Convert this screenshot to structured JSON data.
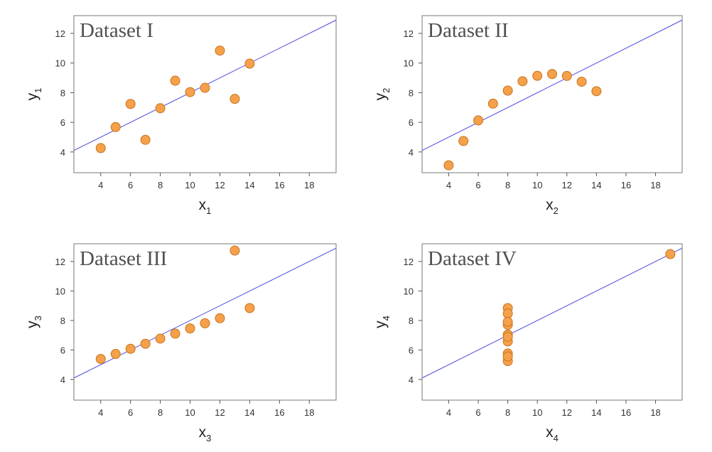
{
  "chart_data": [
    {
      "type": "scatter",
      "title": "Dataset I",
      "xlabel": "x",
      "ylabel": "y",
      "subscript": "1",
      "xlim": [
        2.2,
        19.8
      ],
      "ylim": [
        2.6,
        13.2
      ],
      "xticks": [
        4,
        6,
        8,
        10,
        12,
        14,
        16,
        18
      ],
      "yticks": [
        4,
        6,
        8,
        10,
        12
      ],
      "x": [
        4,
        5,
        6,
        7,
        8,
        9,
        10,
        11,
        12,
        13,
        14
      ],
      "y": [
        4.26,
        5.68,
        7.24,
        4.82,
        6.95,
        8.81,
        8.04,
        8.33,
        10.84,
        7.58,
        9.96
      ],
      "fit_line": {
        "intercept": 3.0,
        "slope": 0.5
      }
    },
    {
      "type": "scatter",
      "title": "Dataset II",
      "xlabel": "x",
      "ylabel": "y",
      "subscript": "2",
      "xlim": [
        2.2,
        19.8
      ],
      "ylim": [
        2.6,
        13.2
      ],
      "xticks": [
        4,
        6,
        8,
        10,
        12,
        14,
        16,
        18
      ],
      "yticks": [
        4,
        6,
        8,
        10,
        12
      ],
      "x": [
        4,
        5,
        6,
        7,
        8,
        9,
        10,
        11,
        12,
        13,
        14
      ],
      "y": [
        3.1,
        4.74,
        6.13,
        7.26,
        8.14,
        8.77,
        9.14,
        9.26,
        9.13,
        8.74,
        8.1
      ],
      "fit_line": {
        "intercept": 3.0,
        "slope": 0.5
      }
    },
    {
      "type": "scatter",
      "title": "Dataset III",
      "xlabel": "x",
      "ylabel": "y",
      "subscript": "3",
      "xlim": [
        2.2,
        19.8
      ],
      "ylim": [
        2.6,
        13.2
      ],
      "xticks": [
        4,
        6,
        8,
        10,
        12,
        14,
        16,
        18
      ],
      "yticks": [
        4,
        6,
        8,
        10,
        12
      ],
      "x": [
        4,
        5,
        6,
        7,
        8,
        9,
        10,
        11,
        12,
        13,
        14
      ],
      "y": [
        5.39,
        5.73,
        6.08,
        6.42,
        6.77,
        7.11,
        7.46,
        7.81,
        8.15,
        12.74,
        8.84
      ],
      "fit_line": {
        "intercept": 3.0,
        "slope": 0.5
      }
    },
    {
      "type": "scatter",
      "title": "Dataset IV",
      "xlabel": "x",
      "ylabel": "y",
      "subscript": "4",
      "xlim": [
        2.2,
        19.8
      ],
      "ylim": [
        2.6,
        13.2
      ],
      "xticks": [
        4,
        6,
        8,
        10,
        12,
        14,
        16,
        18
      ],
      "yticks": [
        4,
        6,
        8,
        10,
        12
      ],
      "x": [
        8,
        8,
        8,
        8,
        8,
        8,
        8,
        19,
        8,
        8,
        8
      ],
      "y": [
        6.58,
        5.76,
        7.71,
        8.84,
        8.47,
        7.04,
        5.25,
        12.5,
        5.56,
        7.91,
        6.89
      ],
      "fit_line": {
        "intercept": 3.0,
        "slope": 0.5
      }
    }
  ],
  "colors": {
    "point_fill": "#f5a04a",
    "point_stroke": "#c8741f",
    "fit_line": "#4a4ae0",
    "frame": "#7a7a7a",
    "title": "#505050"
  }
}
